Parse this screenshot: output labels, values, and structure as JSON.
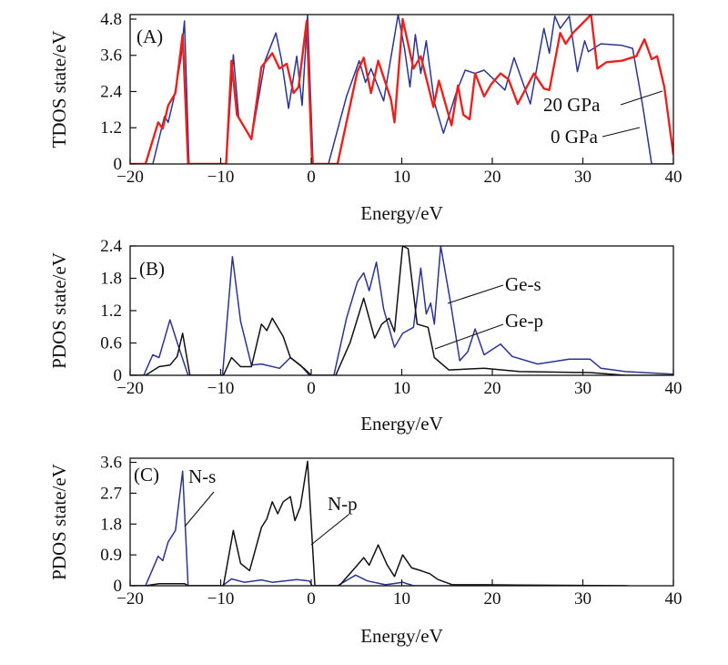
{
  "chart_data": [
    {
      "type": "line",
      "panel_label": "(A)",
      "xlabel": "Energy/eV",
      "ylabel": "TDOS state/eV",
      "xlim": [
        -20,
        40
      ],
      "ylim": [
        0,
        4.95
      ],
      "xticks": [
        "−20",
        "−10",
        "0",
        "10",
        "20",
        "30",
        "40"
      ],
      "xtick_values": [
        -20,
        -10,
        0,
        10,
        20,
        30,
        40
      ],
      "yticks": [
        "0",
        "1.2",
        "2.4",
        "3.6",
        "4.8"
      ],
      "ytick_values": [
        0,
        1.2,
        2.4,
        3.6,
        4.8
      ],
      "series": [
        {
          "name": "0 GPa",
          "color": "#2b3590",
          "x": [
            -20,
            -17.5,
            -16.2,
            -15.8,
            -15.2,
            -14.4,
            -14.0,
            -13.5,
            -9.4,
            -8.6,
            -8.0,
            -6.6,
            -5.1,
            -3.9,
            -3.3,
            -2.5,
            -1.6,
            -1.0,
            -0.4,
            0.2,
            1.9,
            3.9,
            5.3,
            6.0,
            6.6,
            8.0,
            9.6,
            10.3,
            10.9,
            11.5,
            12.1,
            12.7,
            13.6,
            14.6,
            16.0,
            17.0,
            18.1,
            19.1,
            21.4,
            22.4,
            24.2,
            25.7,
            26.3,
            26.9,
            27.5,
            28.5,
            29.4,
            30.2,
            30.6,
            32.0,
            34.3,
            35.5,
            36.6,
            37.6,
            40
          ],
          "y": [
            0,
            0,
            1.58,
            1.38,
            2.14,
            3.47,
            4.74,
            0,
            0,
            3.62,
            1.53,
            0.82,
            3.42,
            4.34,
            3.47,
            1.84,
            3.57,
            1.94,
            5.0,
            0,
            0,
            2.24,
            3.42,
            2.7,
            3.16,
            2.09,
            4.95,
            3.83,
            2.55,
            4.29,
            3.0,
            4.08,
            2.04,
            1.02,
            2.35,
            3.11,
            3.0,
            3.11,
            2.45,
            3.52,
            1.99,
            4.49,
            3.67,
            4.9,
            4.49,
            4.9,
            3.06,
            4.08,
            3.72,
            3.98,
            3.93,
            3.83,
            1.94,
            0,
            0
          ]
        },
        {
          "name": "20 GPa",
          "color": "#e8231f",
          "x": [
            -20,
            -18.3,
            -16.9,
            -16.4,
            -15.8,
            -15.0,
            -14.2,
            -13.6,
            -9.4,
            -8.8,
            -8.2,
            -6.6,
            -5.5,
            -4.3,
            -3.5,
            -2.7,
            -1.95,
            -1.4,
            -0.5,
            0.1,
            2.9,
            5.1,
            5.8,
            6.6,
            7.4,
            8.8,
            9.2,
            10.1,
            11.3,
            12.1,
            13.5,
            14.1,
            15.5,
            16.2,
            16.8,
            17.5,
            18.1,
            19.1,
            19.9,
            20.9,
            21.8,
            22.8,
            24.6,
            25.7,
            26.3,
            27.5,
            28.1,
            28.9,
            30.9,
            31.6,
            32.6,
            34.3,
            35.9,
            36.8,
            37.6,
            38.2,
            39.0,
            40
          ],
          "y": [
            0,
            0,
            1.38,
            1.17,
            1.94,
            2.35,
            4.29,
            0,
            0,
            3.42,
            1.63,
            0.82,
            3.21,
            3.67,
            3.16,
            3.32,
            2.35,
            2.55,
            4.74,
            0,
            0,
            3.06,
            3.52,
            2.35,
            3.42,
            2.14,
            1.38,
            4.8,
            3.16,
            3.57,
            1.89,
            2.76,
            1.28,
            2.6,
            1.63,
            1.48,
            3.0,
            2.24,
            2.65,
            3.0,
            2.8,
            1.99,
            3.0,
            2.5,
            2.45,
            4.34,
            3.98,
            4.34,
            4.95,
            3.16,
            3.37,
            3.42,
            3.57,
            4.13,
            3.47,
            3.57,
            2.55,
            0.3
          ]
        }
      ],
      "annotations": [
        "20 GPa",
        "0 GPa"
      ]
    },
    {
      "type": "line",
      "panel_label": "(B)",
      "xlabel": "Energy/eV",
      "ylabel": "PDOS state/eV",
      "xlim": [
        -20,
        40
      ],
      "ylim": [
        0,
        2.4
      ],
      "xticks": [
        "−20",
        "−10",
        "0",
        "10",
        "20",
        "30",
        "40"
      ],
      "xtick_values": [
        -20,
        -10,
        0,
        10,
        20,
        30,
        40
      ],
      "yticks": [
        "0",
        "0.6",
        "1.2",
        "1.8",
        "2.4"
      ],
      "ytick_values": [
        0,
        0.6,
        1.2,
        1.8,
        2.4
      ],
      "series": [
        {
          "name": "Ge-s",
          "color": "#2b3590",
          "x": [
            -20,
            -18.5,
            -17.5,
            -16.8,
            -15.6,
            -14.8,
            -13.6,
            -9.8,
            -8.7,
            -7.8,
            -6.6,
            -5.5,
            -3.5,
            -2.3,
            -1.2,
            -0.2,
            2.5,
            3.9,
            5.1,
            5.8,
            6.4,
            7.2,
            8.0,
            9.2,
            10.1,
            11.3,
            12.1,
            12.7,
            13.2,
            13.6,
            14.3,
            15.4,
            16.4,
            17.3,
            18.1,
            19.1,
            20.9,
            22.2,
            25.0,
            28.5,
            30.8,
            32.0,
            34.7,
            40
          ],
          "y": [
            0,
            0,
            0.38,
            0.33,
            1.03,
            0.61,
            0,
            0,
            2.2,
            1.0,
            0.19,
            0.21,
            0.13,
            0.33,
            0.19,
            0,
            0,
            1.06,
            1.73,
            1.9,
            1.57,
            2.1,
            1.23,
            0.52,
            0.78,
            0.89,
            1.99,
            1.14,
            1.34,
            0.95,
            2.4,
            1.34,
            0.27,
            0.44,
            0.86,
            0.38,
            0.58,
            0.35,
            0.21,
            0.3,
            0.3,
            0.13,
            0.07,
            0.02
          ]
        },
        {
          "name": "Ge-p",
          "color": "#111111",
          "x": [
            -20,
            -18.3,
            -16.8,
            -15.6,
            -14.8,
            -14.2,
            -13.4,
            -9.7,
            -8.8,
            -7.8,
            -6.6,
            -5.5,
            -4.9,
            -4.3,
            -3.1,
            -2.3,
            -0.8,
            0,
            2.7,
            4.3,
            5.8,
            7.0,
            7.8,
            8.6,
            9.2,
            10.1,
            10.7,
            11.7,
            12.9,
            13.6,
            15.2,
            19.1,
            23.0,
            30.8,
            34.7,
            40
          ],
          "y": [
            0,
            0,
            0.16,
            0.19,
            0.35,
            0.78,
            0,
            0,
            0.33,
            0.16,
            0.16,
            0.95,
            0.83,
            1.06,
            0.72,
            0.33,
            0.13,
            0,
            0,
            0.61,
            1.43,
            0.69,
            0.95,
            1.06,
            0.81,
            2.5,
            2.35,
            0.95,
            0.89,
            0.33,
            0.1,
            0.13,
            0.07,
            0.05,
            0,
            0
          ]
        }
      ],
      "annotations": [
        "Ge-s",
        "Ge-p"
      ]
    },
    {
      "type": "line",
      "panel_label": "(C)",
      "xlabel": "Energy/eV",
      "ylabel": "PDOS state/eV",
      "xlim": [
        -20,
        40
      ],
      "ylim": [
        0,
        3.72
      ],
      "xticks": [
        "−20",
        "−10",
        "0",
        "10",
        "20",
        "30",
        "40"
      ],
      "xtick_values": [
        -20,
        -10,
        0,
        10,
        20,
        30,
        40
      ],
      "yticks": [
        "0",
        "0.9",
        "1.8",
        "2.7",
        "3.6"
      ],
      "ytick_values": [
        0,
        0.9,
        1.8,
        2.7,
        3.6
      ],
      "series": [
        {
          "name": "N-s",
          "color": "#2b3590",
          "x": [
            -20,
            -18.3,
            -16.9,
            -16.4,
            -15.8,
            -15.0,
            -14.2,
            -13.6,
            -9.8,
            -8.8,
            -7.4,
            -5.5,
            -4.3,
            -1.6,
            -0.2,
            0.1,
            2.9,
            4.9,
            6.2,
            8.2,
            10.1,
            11.3,
            35
          ],
          "y": [
            0,
            0,
            0.86,
            0.73,
            1.28,
            1.61,
            3.34,
            0,
            0,
            0.2,
            0.1,
            0.17,
            0.1,
            0.18,
            0.14,
            0,
            0,
            0.31,
            0.14,
            0.03,
            0.1,
            0,
            0
          ]
        },
        {
          "name": "N-p",
          "color": "#111111",
          "x": [
            -20,
            -18.3,
            -16.8,
            -14.0,
            -13.6,
            -9.7,
            -8.6,
            -7.8,
            -6.8,
            -5.5,
            -4.9,
            -4.3,
            -3.7,
            -3.1,
            -2.3,
            -1.8,
            -1.2,
            -0.4,
            0.4,
            3.1,
            5.1,
            5.8,
            6.4,
            7.4,
            8.4,
            9.2,
            10.1,
            11.1,
            12.1,
            13.1,
            14.0,
            15.6,
            19.1,
            23.0,
            34.7
          ],
          "y": [
            0,
            0,
            0.06,
            0.06,
            0,
            0,
            1.61,
            0.65,
            0.44,
            1.7,
            1.95,
            2.45,
            2.1,
            2.45,
            2.6,
            1.9,
            2.3,
            3.63,
            0,
            0,
            0.6,
            0.82,
            0.6,
            1.19,
            0.6,
            0.27,
            0.9,
            0.52,
            0.44,
            0.35,
            0.18,
            0.03,
            0.03,
            0.02,
            0
          ]
        }
      ],
      "annotations": [
        "N-s",
        "N-p"
      ]
    }
  ]
}
